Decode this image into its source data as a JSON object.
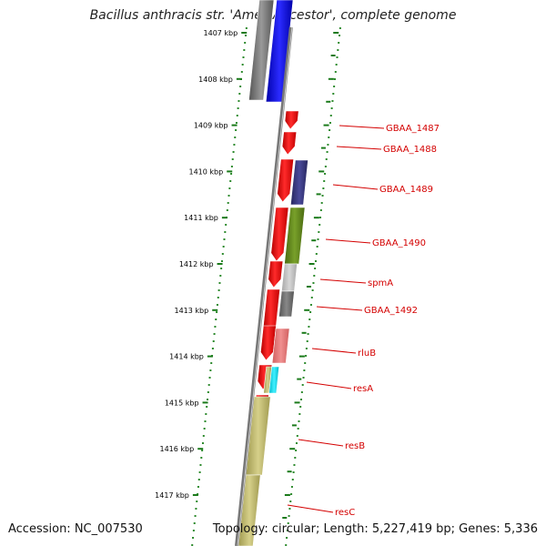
{
  "title": "Bacillus anthracis str. 'Ames Ancestor', complete genome",
  "footer": {
    "accession": "Accession: NC_007530",
    "summary": "Topology: circular; Length: 5,227,419 bp; Genes: 5,336"
  },
  "ruler": {
    "unit": "kbp",
    "ticks": [
      {
        "label": "1407 kbp"
      },
      {
        "label": "1408 kbp"
      },
      {
        "label": "1409 kbp"
      },
      {
        "label": "1410 kbp"
      },
      {
        "label": "1411 kbp"
      },
      {
        "label": "1412 kbp"
      },
      {
        "label": "1413 kbp"
      },
      {
        "label": "1414 kbp"
      },
      {
        "label": "1415 kbp"
      },
      {
        "label": "1416 kbp"
      },
      {
        "label": "1417 kbp"
      }
    ]
  },
  "genes": [
    {
      "label": "GBAA_1487"
    },
    {
      "label": "GBAA_1488"
    },
    {
      "label": "GBAA_1489"
    },
    {
      "label": "GBAA_1490"
    },
    {
      "label": "spmA"
    },
    {
      "label": "GBAA_1492"
    },
    {
      "label": "rluB"
    },
    {
      "label": "resA"
    },
    {
      "label": "resB"
    },
    {
      "label": "resC"
    }
  ],
  "colors": {
    "cds": "#ff0000",
    "label": "#d40000",
    "ruler_dots": "#2e8b2e",
    "backbone": "#888888"
  }
}
